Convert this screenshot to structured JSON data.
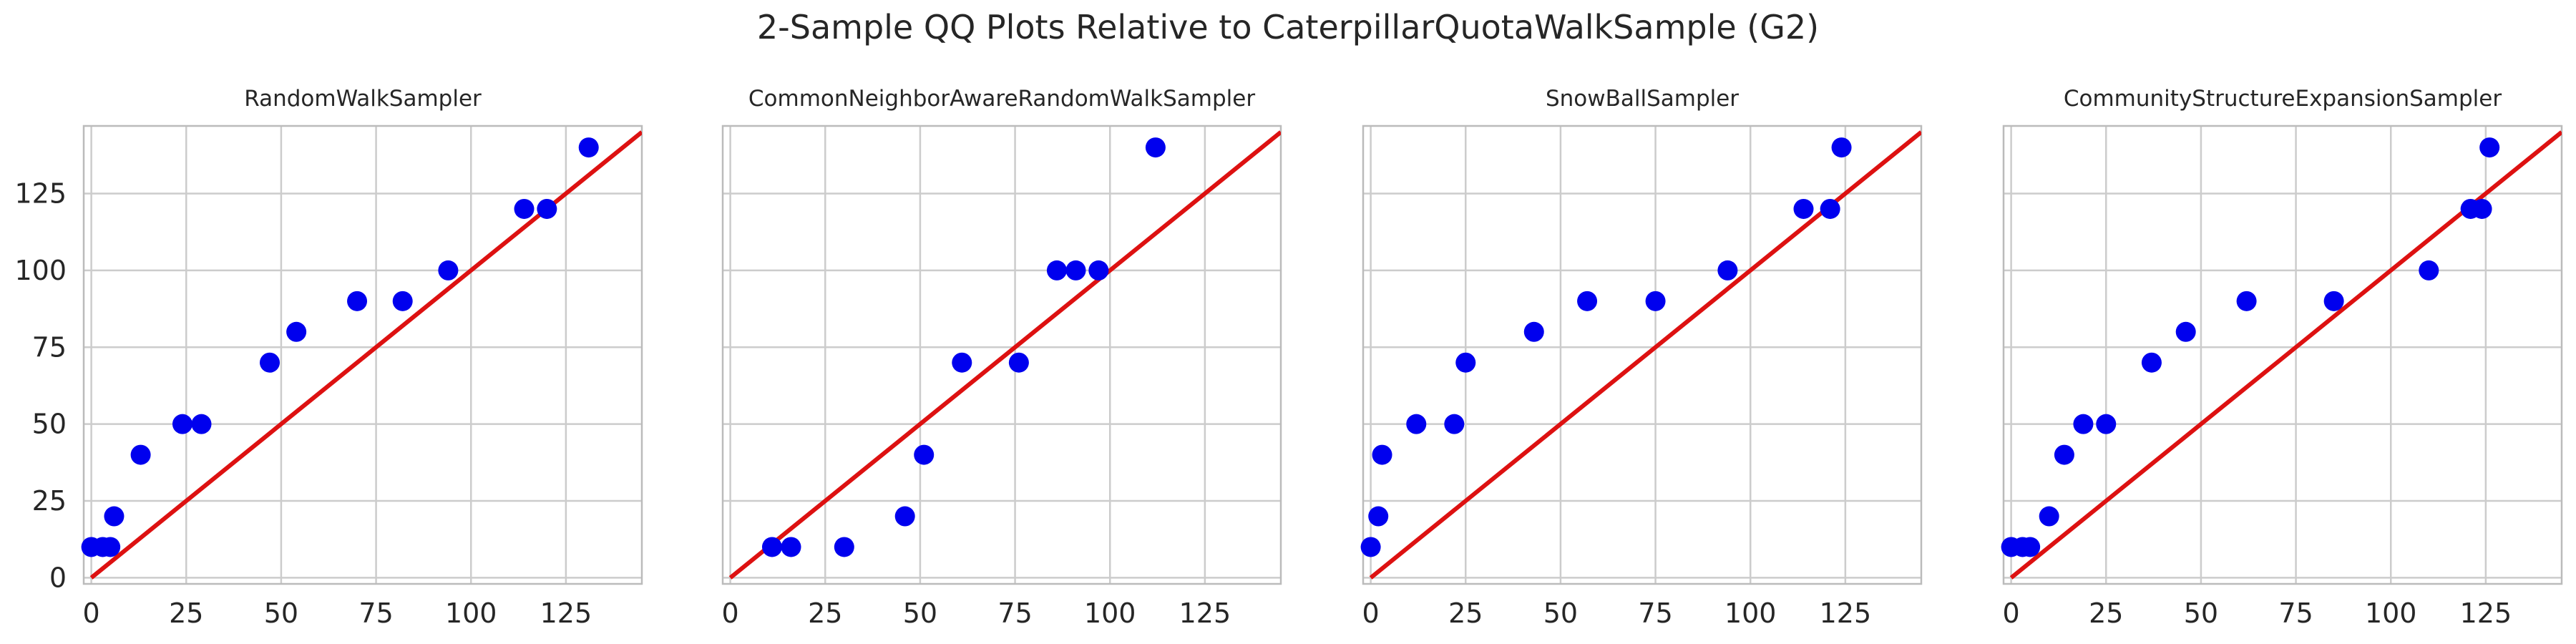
{
  "figure": {
    "title": "2-Sample QQ Plots Relative to CaterpillarQuotaWalkSample (G2)"
  },
  "colors": {
    "points": "#0000ee",
    "reference_line": "#dd1111",
    "grid": "#cccccc",
    "axes_frame": "#bbbbbb",
    "text": "#262626"
  },
  "chart_data": [
    {
      "type": "scatter",
      "title": "RandomWalkSampler",
      "xlabel": "",
      "ylabel": "",
      "xlim": [
        -2,
        145
      ],
      "ylim": [
        -2,
        147
      ],
      "xticks": [
        0,
        25,
        50,
        75,
        100,
        125
      ],
      "yticks": [
        0,
        25,
        50,
        75,
        100,
        125
      ],
      "show_yticklabels": true,
      "grid": true,
      "reference_line": [
        [
          0,
          0
        ],
        [
          145,
          145
        ]
      ],
      "points": [
        [
          0,
          10
        ],
        [
          3,
          10
        ],
        [
          5,
          10
        ],
        [
          6,
          20
        ],
        [
          13,
          40
        ],
        [
          24,
          50
        ],
        [
          29,
          50
        ],
        [
          47,
          70
        ],
        [
          54,
          80
        ],
        [
          70,
          90
        ],
        [
          82,
          90
        ],
        [
          94,
          100
        ],
        [
          114,
          120
        ],
        [
          120,
          120
        ],
        [
          131,
          140
        ]
      ]
    },
    {
      "type": "scatter",
      "title": "CommonNeighborAwareRandomWalkSampler",
      "xlabel": "",
      "ylabel": "",
      "xlim": [
        -2,
        145
      ],
      "ylim": [
        -2,
        147
      ],
      "xticks": [
        0,
        25,
        50,
        75,
        100,
        125
      ],
      "yticks": [
        0,
        25,
        50,
        75,
        100,
        125
      ],
      "show_yticklabels": false,
      "grid": true,
      "reference_line": [
        [
          0,
          0
        ],
        [
          145,
          145
        ]
      ],
      "points": [
        [
          11,
          10
        ],
        [
          16,
          10
        ],
        [
          30,
          10
        ],
        [
          46,
          20
        ],
        [
          51,
          40
        ],
        [
          61,
          70
        ],
        [
          76,
          70
        ],
        [
          86,
          100
        ],
        [
          91,
          100
        ],
        [
          97,
          100
        ],
        [
          112,
          140
        ]
      ]
    },
    {
      "type": "scatter",
      "title": "SnowBallSampler",
      "xlabel": "",
      "ylabel": "",
      "xlim": [
        -2,
        145
      ],
      "ylim": [
        -2,
        147
      ],
      "xticks": [
        0,
        25,
        50,
        75,
        100,
        125
      ],
      "yticks": [
        0,
        25,
        50,
        75,
        100,
        125
      ],
      "show_yticklabels": false,
      "grid": true,
      "reference_line": [
        [
          0,
          0
        ],
        [
          145,
          145
        ]
      ],
      "points": [
        [
          0,
          10
        ],
        [
          2,
          20
        ],
        [
          3,
          40
        ],
        [
          12,
          50
        ],
        [
          22,
          50
        ],
        [
          25,
          70
        ],
        [
          43,
          80
        ],
        [
          57,
          90
        ],
        [
          75,
          90
        ],
        [
          94,
          100
        ],
        [
          114,
          120
        ],
        [
          121,
          120
        ],
        [
          124,
          140
        ]
      ]
    },
    {
      "type": "scatter",
      "title": "CommunityStructureExpansionSampler",
      "xlabel": "",
      "ylabel": "",
      "xlim": [
        -2,
        145
      ],
      "ylim": [
        -2,
        147
      ],
      "xticks": [
        0,
        25,
        50,
        75,
        100,
        125
      ],
      "yticks": [
        0,
        25,
        50,
        75,
        100,
        125
      ],
      "show_yticklabels": false,
      "grid": true,
      "reference_line": [
        [
          0,
          0
        ],
        [
          145,
          145
        ]
      ],
      "points": [
        [
          0,
          10
        ],
        [
          3,
          10
        ],
        [
          5,
          10
        ],
        [
          10,
          20
        ],
        [
          14,
          40
        ],
        [
          19,
          50
        ],
        [
          25,
          50
        ],
        [
          37,
          70
        ],
        [
          46,
          80
        ],
        [
          62,
          90
        ],
        [
          85,
          90
        ],
        [
          110,
          100
        ],
        [
          121,
          120
        ],
        [
          124,
          120
        ],
        [
          126,
          140
        ]
      ]
    }
  ]
}
